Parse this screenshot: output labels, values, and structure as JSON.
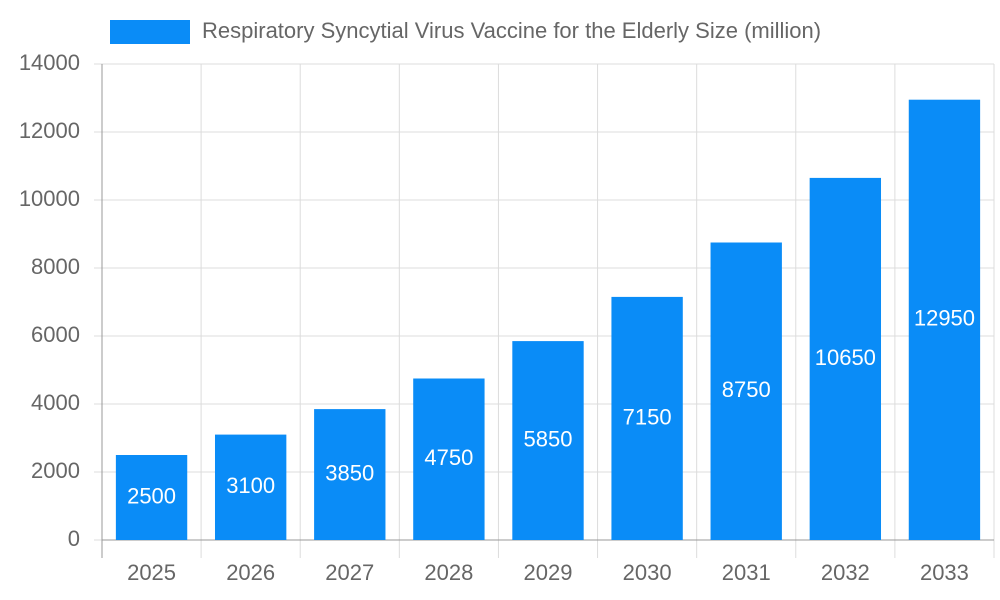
{
  "chart_data": {
    "type": "bar",
    "categories": [
      "2025",
      "2026",
      "2027",
      "2028",
      "2029",
      "2030",
      "2031",
      "2032",
      "2033"
    ],
    "series": [
      {
        "name": "Respiratory Syncytial Virus Vaccine for the Elderly Size (million)",
        "color": "#0a8cf7",
        "values": [
          2500,
          3100,
          3850,
          4750,
          5850,
          7150,
          8750,
          10650,
          12950
        ]
      }
    ],
    "ylim": [
      0,
      14000
    ],
    "yticks": [
      0,
      2000,
      4000,
      6000,
      8000,
      10000,
      12000,
      14000
    ],
    "grid": true,
    "legend": "top"
  }
}
